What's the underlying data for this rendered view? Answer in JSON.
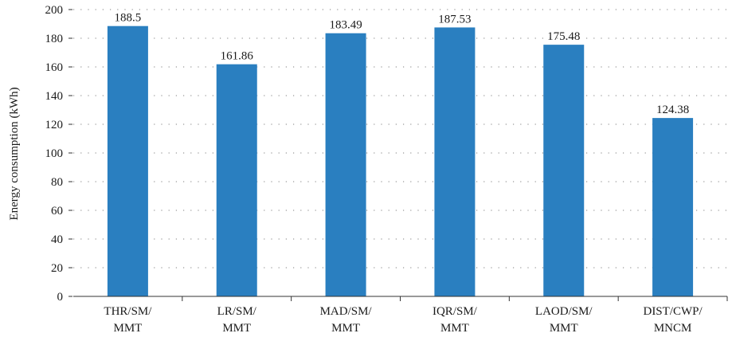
{
  "chart_data": {
    "type": "bar",
    "categories": [
      [
        "THR/SM/",
        "MMT"
      ],
      [
        "LR/SM/",
        "MMT"
      ],
      [
        "MAD/SM/",
        "MMT"
      ],
      [
        "IQR/SM/",
        "MMT"
      ],
      [
        "LAOD/SM/",
        "MMT"
      ],
      [
        "DIST/CWP/",
        "MNCM"
      ]
    ],
    "values": [
      188.5,
      161.86,
      183.49,
      187.53,
      175.48,
      124.38
    ],
    "value_labels": [
      "188.5",
      "161.86",
      "183.49",
      "187.53",
      "175.48",
      "124.38"
    ],
    "ylabel": "Energy consumption (kWh)",
    "xlabel": "",
    "ylim": [
      0,
      200
    ],
    "yticks": [
      0,
      20,
      40,
      60,
      80,
      100,
      120,
      140,
      160,
      180,
      200
    ],
    "grid": "horizontal dotted",
    "colors": {
      "bar": "#2a7fc0",
      "grid": "#999999",
      "axis": "#333333"
    }
  }
}
